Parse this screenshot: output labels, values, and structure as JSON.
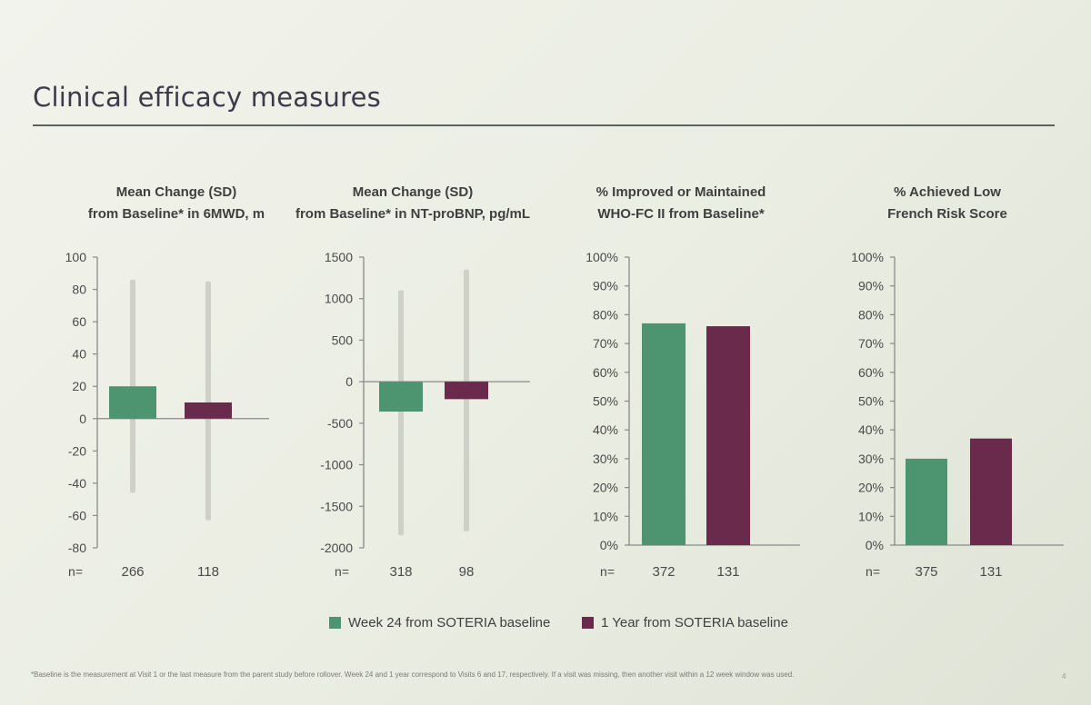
{
  "slide": {
    "title": "Clinical efficacy measures",
    "footnote": "*Baseline is the measurement at Visit 1 or the last measure from the parent study before rollover. Week 24 and 1 year correspond to Visits 6 and 17, respectively. If a visit was missing, then another visit within a 12 week window was used.",
    "page_number": "4"
  },
  "colors": {
    "week24": "#4d9470",
    "year1": "#6a2a4c",
    "sd_bar": "#cfd1c8",
    "axis": "#8a8a8a"
  },
  "legend": [
    {
      "label": "Week 24 from SOTERIA baseline",
      "color": "#4d9470"
    },
    {
      "label": "1 Year from SOTERIA baseline",
      "color": "#6a2a4c"
    }
  ],
  "chart_data": [
    {
      "type": "bar",
      "title_lines": [
        "Mean Change (SD)",
        "from Baseline* in 6MWD, m"
      ],
      "ylim": [
        -80,
        100
      ],
      "yticks": [
        "100",
        "80",
        "60",
        "40",
        "20",
        "0",
        "-20",
        "-40",
        "-60",
        "-80"
      ],
      "ytick_values": [
        100,
        80,
        60,
        40,
        20,
        0,
        -20,
        -40,
        -60,
        -80
      ],
      "n_label": "n=",
      "series": [
        {
          "name": "Week 24 from SOTERIA baseline",
          "value": 20,
          "sd_low": -46,
          "sd_high": 86,
          "n": "266"
        },
        {
          "name": "1 Year from SOTERIA baseline",
          "value": 10,
          "sd_low": -63,
          "sd_high": 85,
          "n": "118"
        }
      ]
    },
    {
      "type": "bar",
      "title_lines": [
        "Mean Change (SD)",
        "from Baseline* in NT-proBNP, pg/mL"
      ],
      "ylim": [
        -2000,
        1500
      ],
      "yticks": [
        "1500",
        "1000",
        "500",
        "0",
        "-500",
        "-1000",
        "-1500",
        "-2000"
      ],
      "ytick_values": [
        1500,
        1000,
        500,
        0,
        -500,
        -1000,
        -1500,
        -2000
      ],
      "n_label": "n=",
      "series": [
        {
          "name": "Week 24 from SOTERIA baseline",
          "value": -360,
          "sd_low": -1850,
          "sd_high": 1100,
          "n": "318"
        },
        {
          "name": "1 Year from SOTERIA baseline",
          "value": -210,
          "sd_low": -1800,
          "sd_high": 1350,
          "n": "98"
        }
      ]
    },
    {
      "type": "bar",
      "title_lines": [
        "% Improved or Maintained",
        "WHO-FC II from Baseline*"
      ],
      "ylim": [
        0,
        100
      ],
      "yticks": [
        "100%",
        "90%",
        "80%",
        "70%",
        "60%",
        "50%",
        "40%",
        "30%",
        "20%",
        "10%",
        "0%"
      ],
      "ytick_values": [
        100,
        90,
        80,
        70,
        60,
        50,
        40,
        30,
        20,
        10,
        0
      ],
      "n_label": "n=",
      "series": [
        {
          "name": "Week 24 from SOTERIA baseline",
          "value": 77,
          "n": "372"
        },
        {
          "name": "1 Year from SOTERIA baseline",
          "value": 76,
          "n": "131"
        }
      ]
    },
    {
      "type": "bar",
      "title_lines": [
        "% Achieved Low",
        "French Risk Score"
      ],
      "ylim": [
        0,
        100
      ],
      "yticks": [
        "100%",
        "90%",
        "80%",
        "70%",
        "60%",
        "50%",
        "40%",
        "30%",
        "20%",
        "10%",
        "0%"
      ],
      "ytick_values": [
        100,
        90,
        80,
        70,
        60,
        50,
        40,
        30,
        20,
        10,
        0
      ],
      "n_label": "n=",
      "series": [
        {
          "name": "Week 24 from SOTERIA baseline",
          "value": 30,
          "n": "375"
        },
        {
          "name": "1 Year from SOTERIA baseline",
          "value": 37,
          "n": "131"
        }
      ]
    }
  ]
}
